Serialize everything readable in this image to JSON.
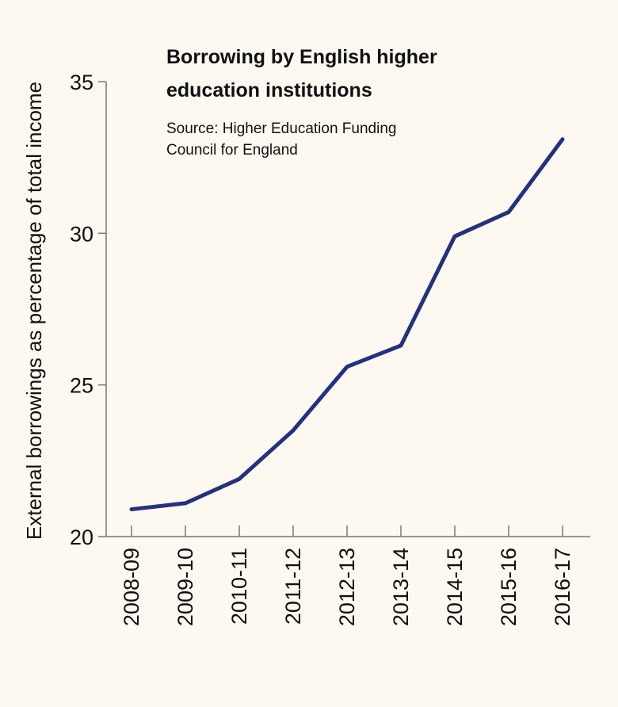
{
  "chart_data": {
    "type": "line",
    "title": "Borrowing by English higher education institutions",
    "title_lines": [
      "Borrowing by English higher",
      "education institutions"
    ],
    "subtitle_lines": [
      "Source: Higher Education Funding",
      "Council for England"
    ],
    "xlabel": "",
    "ylabel": "External borrowings as percentage of total income",
    "categories": [
      "2008-09",
      "2009-10",
      "2010-11",
      "2011-12",
      "2012-13",
      "2013-14",
      "2014-15",
      "2015-16",
      "2016-17"
    ],
    "values": [
      20.9,
      21.1,
      21.9,
      23.5,
      25.6,
      26.3,
      29.9,
      30.7,
      33.1
    ],
    "ylim": [
      20,
      35
    ],
    "yticks": [
      20,
      25,
      30,
      35
    ],
    "grid": false,
    "line_color": "#24317f",
    "background": "#fdf9f0"
  }
}
